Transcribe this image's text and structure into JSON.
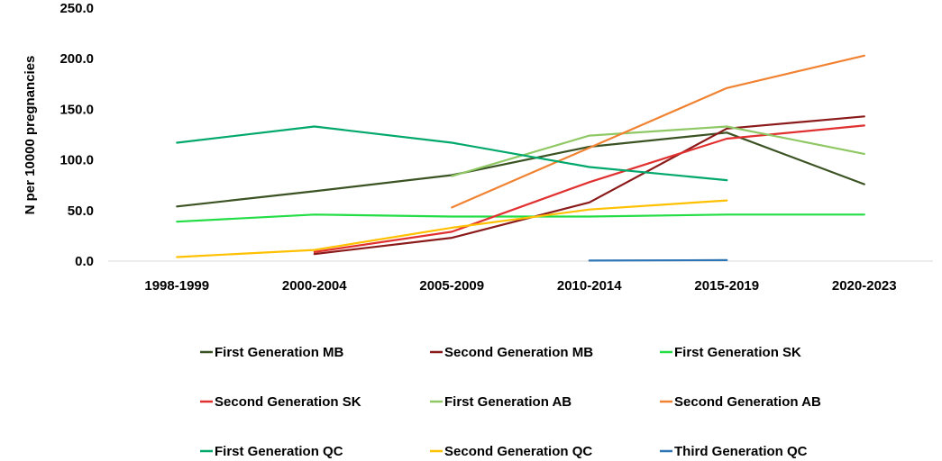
{
  "chart_data": {
    "type": "line",
    "title": "",
    "xlabel": "",
    "ylabel": "N per 10000 pregnancies",
    "ylim": [
      0,
      250
    ],
    "yticks": [
      0,
      50,
      100,
      150,
      200,
      250
    ],
    "ytick_labels": [
      "0.0",
      "50.0",
      "100.0",
      "150.0",
      "200.0",
      "250.0"
    ],
    "grid": false,
    "legend_position": "bottom",
    "categories": [
      "1998-1999",
      "2000-2004",
      "2005-2009",
      "2010-2014",
      "2015-2019",
      "2020-2023"
    ],
    "series": [
      {
        "name": "First Generation MB",
        "color": "#3b5323",
        "values": [
          54,
          69,
          85,
          113,
          127,
          76
        ]
      },
      {
        "name": "Second Generation MB",
        "color": "#8b1a1a",
        "values": [
          null,
          7,
          23,
          58,
          131,
          143
        ]
      },
      {
        "name": "First Generation SK",
        "color": "#22dd44",
        "values": [
          39,
          46,
          44,
          44,
          46,
          46
        ]
      },
      {
        "name": "Second Generation SK",
        "color": "#e03030",
        "values": [
          null,
          9,
          29,
          78,
          121,
          134
        ]
      },
      {
        "name": "First Generation AB",
        "color": "#8fc864",
        "values": [
          null,
          null,
          84,
          124,
          133,
          106
        ]
      },
      {
        "name": "Second Generation AB",
        "color": "#f08232",
        "values": [
          null,
          null,
          53,
          112,
          171,
          203
        ]
      },
      {
        "name": "First Generation QC",
        "color": "#00a86b",
        "values": [
          117,
          133,
          117,
          93,
          80,
          null
        ]
      },
      {
        "name": "Second Generation QC",
        "color": "#ffc000",
        "values": [
          4,
          11,
          33,
          51,
          60,
          null
        ]
      },
      {
        "name": "Third Generation QC",
        "color": "#2e75b6",
        "values": [
          null,
          null,
          null,
          0.5,
          1,
          null
        ]
      }
    ]
  }
}
